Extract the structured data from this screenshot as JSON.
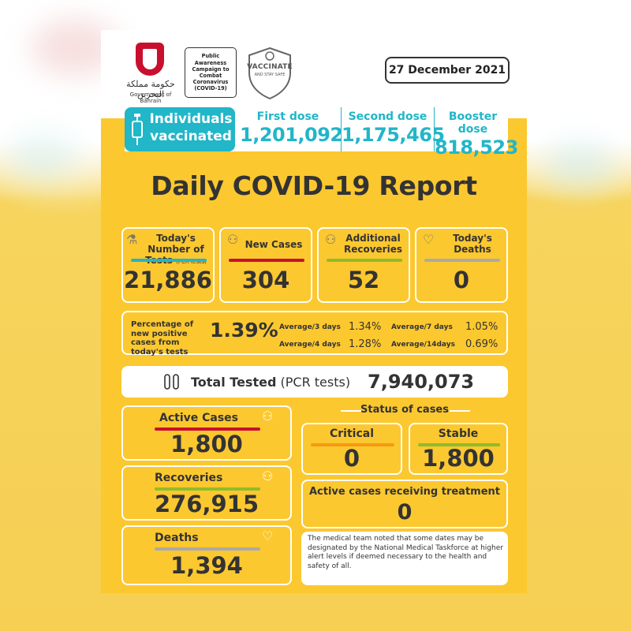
{
  "header": {
    "crest_arabic": "حكومة مملكة البحرين",
    "crest_english": "Government of Bahrain",
    "campaign": "Public Awareness Campaign to Combat Coronavirus (COVID-19)",
    "vaccinate_title": "VACCINATE",
    "vaccinate_sub": "AND STAY SAFE",
    "date": "27 December 2021"
  },
  "vaccination": {
    "label_line1": "Individuals",
    "label_line2": "vaccinated",
    "doses": [
      {
        "label": "First dose",
        "value": "1,201,092"
      },
      {
        "label": "Second dose",
        "value": "1,175,465"
      },
      {
        "label": "Booster dose",
        "value": "818,523"
      }
    ]
  },
  "title": "Daily COVID-19 Report",
  "stats": [
    {
      "label": "Today's Number of Tests",
      "sub": "(PCR tests)",
      "value": "21,886",
      "color": "#21b6c8"
    },
    {
      "label": "New Cases",
      "value": "304",
      "color": "#c8102e"
    },
    {
      "label": "Additional Recoveries",
      "value": "52",
      "color": "#8fbc2b"
    },
    {
      "label": "Today's Deaths",
      "value": "0",
      "color": "#aaaaaa"
    }
  ],
  "positivity": {
    "label": "Percentage of new positive cases from today's tests",
    "value": "1.39%",
    "averages": [
      {
        "label": "Average/3 days",
        "value": "1.34%"
      },
      {
        "label": "Average/7 days",
        "value": "1.05%"
      },
      {
        "label": "Average/4 days",
        "value": "1.28%"
      },
      {
        "label": "Average/14days",
        "value": "0.69%"
      }
    ]
  },
  "total_tested": {
    "label": "Total Tested",
    "sub": "(PCR tests)",
    "value": "7,940,073"
  },
  "cumulative": {
    "active": {
      "label": "Active Cases",
      "value": "1,800",
      "color": "#c8102e"
    },
    "recoveries": {
      "label": "Recoveries",
      "value": "276,915",
      "color": "#8fbc2b"
    },
    "deaths": {
      "label": "Deaths",
      "value": "1,394",
      "color": "#aaaaaa"
    }
  },
  "status": {
    "title": "Status of cases",
    "critical": {
      "label": "Critical",
      "value": "0",
      "color": "#f39c12"
    },
    "stable": {
      "label": "Stable",
      "value": "1,800",
      "color": "#8fbc2b"
    },
    "treatment": {
      "label": "Active cases receiving treatment",
      "value": "0"
    }
  },
  "note": "The medical team noted that some dates may be designated by the National Medical Taskforce at higher alert levels if deemed necessary to the health and safety of all."
}
